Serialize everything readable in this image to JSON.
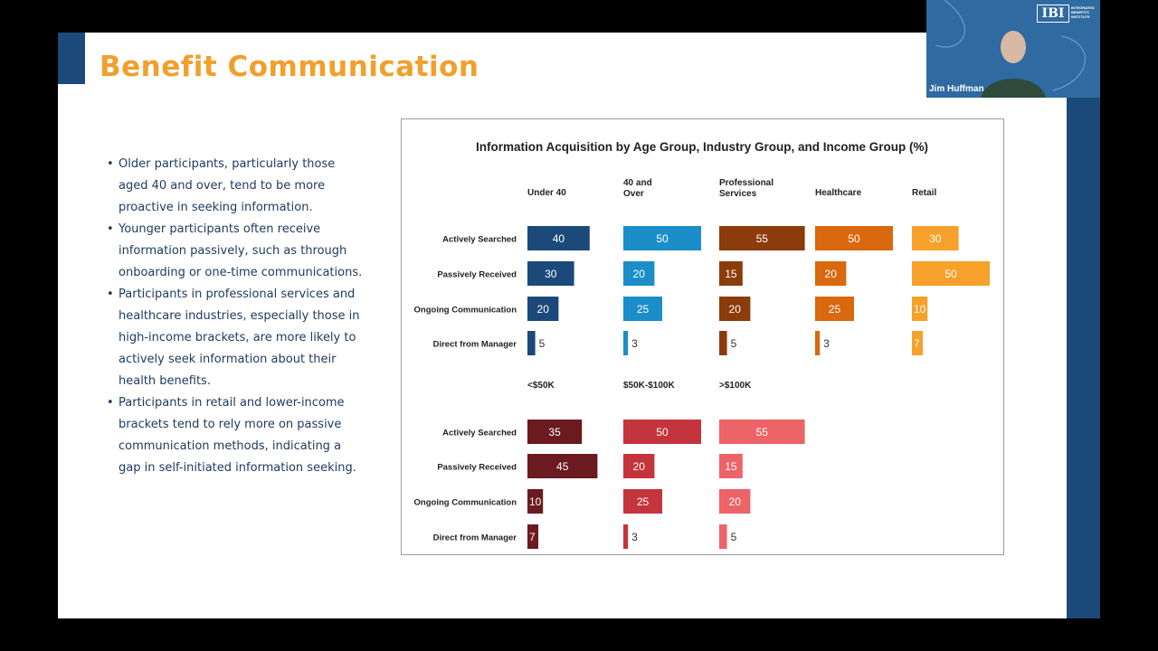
{
  "slide": {
    "title": "Benefit Communication",
    "bullets": [
      "Older participants, particularly those aged 40 and over, tend to be more proactive in seeking information.",
      "Younger participants often receive information passively, such as through onboarding or one-time communications.",
      "Participants in professional services and healthcare industries, especially those in high-income brackets, are more likely to actively seek information about their health benefits.",
      "Participants in retail and lower-income brackets tend to rely more on passive communication methods, indicating a gap in self-initiated information seeking."
    ]
  },
  "video": {
    "participant_name": "Jim Huffman",
    "logo": "IBI",
    "logo_text": "INTEGRATED BENEFITS INSTITUTE"
  },
  "chart_data": {
    "type": "bar",
    "title": "Information Acquisition by Age Group, Industry Group, and Income Group (%)",
    "categories": [
      "Actively Searched",
      "Passively Received",
      "Ongoing Communication",
      "Direct from Manager"
    ],
    "max_value": 50,
    "panels": [
      {
        "groups": [
          {
            "name": "Under 40",
            "color": "#1b4a7a",
            "values": [
              40,
              30,
              20,
              5
            ]
          },
          {
            "name": "40 and Over",
            "color": "#1b8ec9",
            "values": [
              50,
              20,
              25,
              3
            ]
          },
          {
            "name": "Professional Services",
            "color": "#8b3c0a",
            "values": [
              55,
              15,
              20,
              5
            ]
          },
          {
            "name": "Healthcare",
            "color": "#d9680f",
            "values": [
              50,
              20,
              25,
              3
            ]
          },
          {
            "name": "Retail",
            "color": "#f7a02a",
            "values": [
              30,
              50,
              10,
              7
            ]
          }
        ]
      },
      {
        "groups": [
          {
            "name": "<$50K",
            "color": "#6b1a1f",
            "values": [
              35,
              45,
              10,
              7
            ]
          },
          {
            "name": "$50K-$100K",
            "color": "#c4343c",
            "values": [
              50,
              20,
              25,
              3
            ]
          },
          {
            "name": ">$100K",
            "color": "#ec6368",
            "values": [
              55,
              15,
              20,
              5
            ]
          }
        ]
      }
    ]
  }
}
